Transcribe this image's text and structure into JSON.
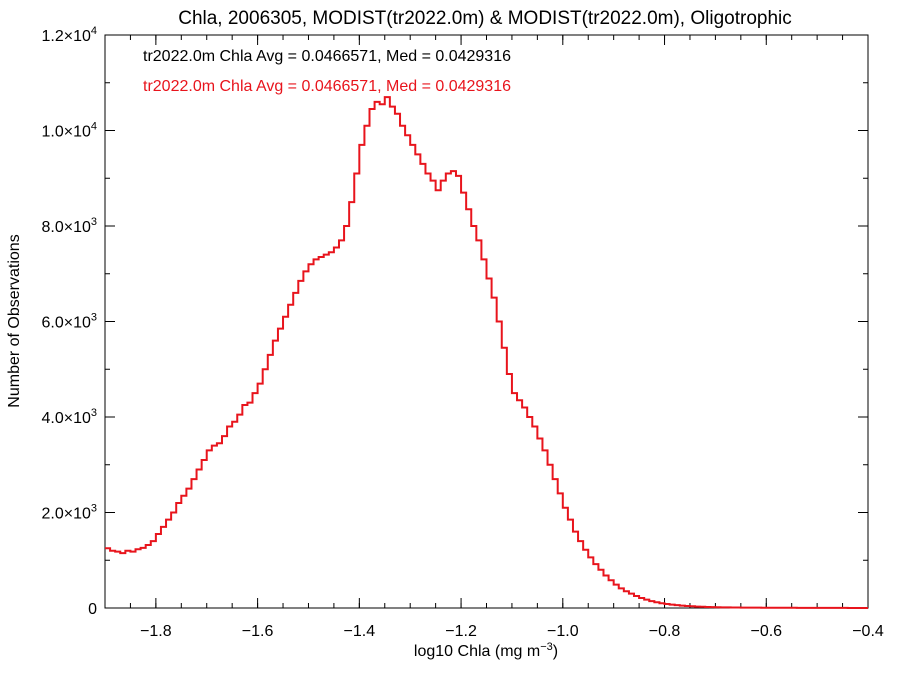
{
  "chart_data": {
    "type": "histogram-step",
    "title": "Chla, 2006305, MODIST(tr2022.0m) & MODIST(tr2022.0m), Oligotrophic",
    "xlabel_base": "log10 Chla (mg m",
    "xlabel_exp": "−3",
    "xlabel_close": ")",
    "ylabel": "Number of Observations",
    "xlim": [
      -1.9,
      -0.4
    ],
    "ylim": [
      0,
      12000
    ],
    "x_ticks": [
      {
        "value": -1.8,
        "label": "−1.8"
      },
      {
        "value": -1.6,
        "label": "−1.6"
      },
      {
        "value": -1.4,
        "label": "−1.4"
      },
      {
        "value": -1.2,
        "label": "−1.2"
      },
      {
        "value": -1.0,
        "label": "−1.0"
      },
      {
        "value": -0.8,
        "label": "−0.8"
      },
      {
        "value": -0.6,
        "label": "−0.6"
      },
      {
        "value": -0.4,
        "label": "−0.4"
      }
    ],
    "y_ticks": [
      {
        "value": 0,
        "mant": "0",
        "exp": ""
      },
      {
        "value": 2000,
        "mant": "2.0×10",
        "exp": "3"
      },
      {
        "value": 4000,
        "mant": "4.0×10",
        "exp": "3"
      },
      {
        "value": 6000,
        "mant": "6.0×10",
        "exp": "3"
      },
      {
        "value": 8000,
        "mant": "8.0×10",
        "exp": "3"
      },
      {
        "value": 10000,
        "mant": "1.0×10",
        "exp": "4"
      },
      {
        "value": 12000,
        "mant": "1.2×10",
        "exp": "4"
      }
    ],
    "annotations": [
      {
        "text": "tr2022.0m Chla Avg = 0.0466571, Med = 0.0429316",
        "color": "#000000"
      },
      {
        "text": "tr2022.0m Chla Avg = 0.0466571, Med = 0.0429316",
        "color": "#e8141c"
      }
    ],
    "series": [
      {
        "color": "#e8141c",
        "bin_width": 0.01,
        "points": [
          [
            -1.9,
            1250
          ],
          [
            -1.89,
            1200
          ],
          [
            -1.88,
            1180
          ],
          [
            -1.87,
            1150
          ],
          [
            -1.86,
            1200
          ],
          [
            -1.85,
            1180
          ],
          [
            -1.84,
            1230
          ],
          [
            -1.83,
            1260
          ],
          [
            -1.82,
            1320
          ],
          [
            -1.81,
            1400
          ],
          [
            -1.8,
            1550
          ],
          [
            -1.79,
            1700
          ],
          [
            -1.78,
            1850
          ],
          [
            -1.77,
            2000
          ],
          [
            -1.76,
            2200
          ],
          [
            -1.75,
            2350
          ],
          [
            -1.74,
            2500
          ],
          [
            -1.73,
            2700
          ],
          [
            -1.72,
            2900
          ],
          [
            -1.71,
            3100
          ],
          [
            -1.7,
            3300
          ],
          [
            -1.69,
            3400
          ],
          [
            -1.68,
            3450
          ],
          [
            -1.67,
            3600
          ],
          [
            -1.66,
            3800
          ],
          [
            -1.65,
            3900
          ],
          [
            -1.64,
            4050
          ],
          [
            -1.63,
            4250
          ],
          [
            -1.62,
            4300
          ],
          [
            -1.61,
            4500
          ],
          [
            -1.6,
            4700
          ],
          [
            -1.59,
            5000
          ],
          [
            -1.58,
            5300
          ],
          [
            -1.57,
            5600
          ],
          [
            -1.56,
            5850
          ],
          [
            -1.55,
            6100
          ],
          [
            -1.54,
            6350
          ],
          [
            -1.53,
            6600
          ],
          [
            -1.52,
            6850
          ],
          [
            -1.51,
            7050
          ],
          [
            -1.5,
            7200
          ],
          [
            -1.49,
            7300
          ],
          [
            -1.48,
            7350
          ],
          [
            -1.47,
            7400
          ],
          [
            -1.46,
            7450
          ],
          [
            -1.45,
            7550
          ],
          [
            -1.44,
            7700
          ],
          [
            -1.43,
            8000
          ],
          [
            -1.42,
            8500
          ],
          [
            -1.41,
            9100
          ],
          [
            -1.4,
            9700
          ],
          [
            -1.39,
            10100
          ],
          [
            -1.38,
            10450
          ],
          [
            -1.37,
            10600
          ],
          [
            -1.36,
            10550
          ],
          [
            -1.35,
            10700
          ],
          [
            -1.34,
            10500
          ],
          [
            -1.33,
            10350
          ],
          [
            -1.32,
            10100
          ],
          [
            -1.31,
            9900
          ],
          [
            -1.3,
            9700
          ],
          [
            -1.29,
            9500
          ],
          [
            -1.28,
            9300
          ],
          [
            -1.27,
            9100
          ],
          [
            -1.26,
            8950
          ],
          [
            -1.25,
            8750
          ],
          [
            -1.24,
            8950
          ],
          [
            -1.23,
            9100
          ],
          [
            -1.22,
            9150
          ],
          [
            -1.21,
            9050
          ],
          [
            -1.2,
            8700
          ],
          [
            -1.19,
            8350
          ],
          [
            -1.18,
            8000
          ],
          [
            -1.17,
            7700
          ],
          [
            -1.16,
            7300
          ],
          [
            -1.15,
            6900
          ],
          [
            -1.14,
            6500
          ],
          [
            -1.13,
            6000
          ],
          [
            -1.12,
            5450
          ],
          [
            -1.11,
            4900
          ],
          [
            -1.1,
            4500
          ],
          [
            -1.09,
            4350
          ],
          [
            -1.08,
            4200
          ],
          [
            -1.07,
            4000
          ],
          [
            -1.06,
            3800
          ],
          [
            -1.05,
            3550
          ],
          [
            -1.04,
            3300
          ],
          [
            -1.03,
            3000
          ],
          [
            -1.02,
            2700
          ],
          [
            -1.01,
            2400
          ],
          [
            -1.0,
            2100
          ],
          [
            -0.99,
            1850
          ],
          [
            -0.98,
            1600
          ],
          [
            -0.97,
            1400
          ],
          [
            -0.96,
            1220
          ],
          [
            -0.95,
            1060
          ],
          [
            -0.94,
            920
          ],
          [
            -0.93,
            800
          ],
          [
            -0.92,
            680
          ],
          [
            -0.91,
            580
          ],
          [
            -0.9,
            490
          ],
          [
            -0.89,
            410
          ],
          [
            -0.88,
            350
          ],
          [
            -0.87,
            300
          ],
          [
            -0.86,
            250
          ],
          [
            -0.85,
            210
          ],
          [
            -0.84,
            175
          ],
          [
            -0.83,
            145
          ],
          [
            -0.82,
            120
          ],
          [
            -0.81,
            100
          ],
          [
            -0.8,
            85
          ],
          [
            -0.79,
            70
          ],
          [
            -0.78,
            60
          ],
          [
            -0.77,
            50
          ],
          [
            -0.76,
            42
          ],
          [
            -0.75,
            36
          ],
          [
            -0.74,
            30
          ],
          [
            -0.73,
            26
          ],
          [
            -0.72,
            22
          ],
          [
            -0.71,
            19
          ],
          [
            -0.7,
            16
          ],
          [
            -0.69,
            14
          ],
          [
            -0.68,
            12
          ],
          [
            -0.67,
            11
          ],
          [
            -0.66,
            10
          ],
          [
            -0.65,
            9
          ],
          [
            -0.64,
            8
          ],
          [
            -0.63,
            7
          ],
          [
            -0.62,
            7
          ],
          [
            -0.61,
            6
          ],
          [
            -0.6,
            5
          ],
          [
            -0.59,
            5
          ],
          [
            -0.58,
            5
          ],
          [
            -0.57,
            4
          ],
          [
            -0.56,
            4
          ],
          [
            -0.55,
            4
          ],
          [
            -0.54,
            3
          ],
          [
            -0.53,
            3
          ],
          [
            -0.52,
            3
          ],
          [
            -0.51,
            3
          ],
          [
            -0.5,
            2
          ],
          [
            -0.49,
            2
          ],
          [
            -0.48,
            2
          ],
          [
            -0.47,
            2
          ],
          [
            -0.46,
            2
          ],
          [
            -0.45,
            2
          ],
          [
            -0.44,
            1
          ],
          [
            -0.43,
            1
          ],
          [
            -0.42,
            1
          ],
          [
            -0.41,
            1
          ]
        ]
      }
    ]
  }
}
